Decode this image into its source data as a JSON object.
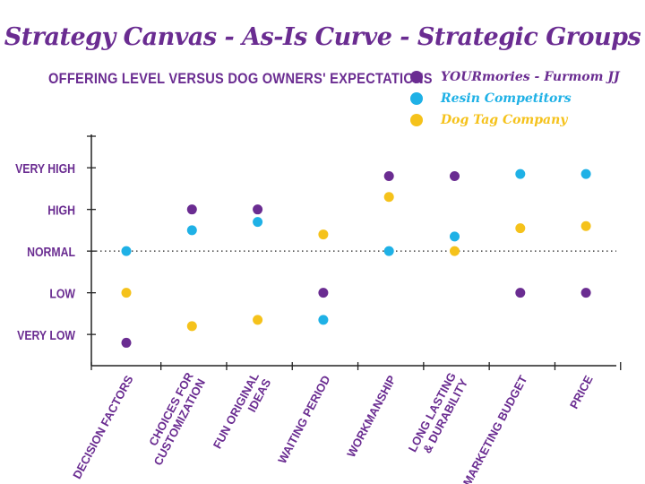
{
  "chart_data": {
    "type": "scatter",
    "title": "Strategy Canvas - As-Is Curve - Strategic Groups",
    "subtitle": "Offering Level versus Dog Owners' Expectations",
    "categories": [
      "Decision Factors",
      "Choices for Customization",
      "Fun Original Ideas",
      "Waiting Period",
      "Workmanship",
      "Long Lasting & Durability",
      "Marketing Budget",
      "Price"
    ],
    "y_levels": [
      "Very Low",
      "Low",
      "Normal",
      "High",
      "Very High"
    ],
    "ylim": [
      0.25,
      5.8
    ],
    "reference_line": {
      "value": 3,
      "style": "dotted"
    },
    "series": [
      {
        "name": "YOURmories - Furmom JJ",
        "color": "#6a2c91",
        "values": [
          0.8,
          4.0,
          4.0,
          2.0,
          4.8,
          4.8,
          2.0,
          2.0
        ]
      },
      {
        "name": "Resin Competitors",
        "color": "#1fb1e6",
        "values": [
          3.0,
          3.5,
          3.7,
          1.35,
          3.0,
          3.35,
          4.85,
          4.85
        ]
      },
      {
        "name": "Dog Tag Company",
        "color": "#f5c21b",
        "values": [
          2.0,
          1.2,
          1.35,
          3.4,
          4.3,
          3.0,
          3.55,
          3.6
        ]
      }
    ]
  }
}
